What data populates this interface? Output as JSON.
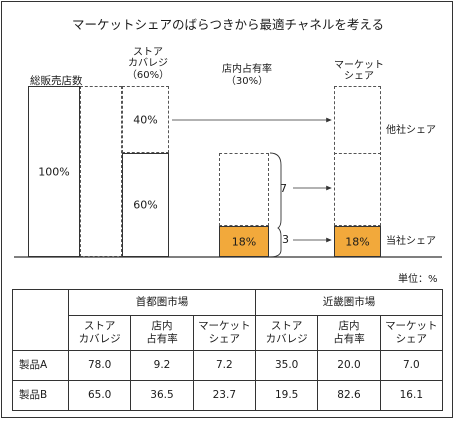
{
  "title": "マーケットシェアのばらつきから最適チャネルを考える",
  "diagram": {
    "total_stores_label": "総販売店数",
    "total_stores_value": "100%",
    "store_coverage_label": "ストア\nカバレジ",
    "store_coverage_pct": "（60%）",
    "coverage_top_value": "40%",
    "coverage_bottom_value": "60%",
    "in_store_share_label": "店内占有率",
    "in_store_share_pct": "（30%）",
    "in_store_value": "18%",
    "market_share_label": "マーケット\nシェア",
    "market_share_value": "18%",
    "gap_upper": "7",
    "gap_lower": "3",
    "other_share_label": "他社シェア",
    "own_share_label": "当社シェア",
    "orange_color": "#f2a93b"
  },
  "table": {
    "unit": "単位：%",
    "group_headers": [
      "首都圏市場",
      "近畿圏市場"
    ],
    "column_headers": [
      "ストア\nカバレジ",
      "店内\n占有率",
      "マーケット\nシェア",
      "ストア\nカバレジ",
      "店内\n占有率",
      "マーケット\nシェア"
    ],
    "rows": [
      {
        "label": "製品A",
        "values": [
          "78.0",
          "9.2",
          "7.2",
          "35.0",
          "20.0",
          "7.0"
        ]
      },
      {
        "label": "製品B",
        "values": [
          "65.0",
          "36.5",
          "23.7",
          "19.5",
          "82.6",
          "16.1"
        ]
      }
    ]
  }
}
